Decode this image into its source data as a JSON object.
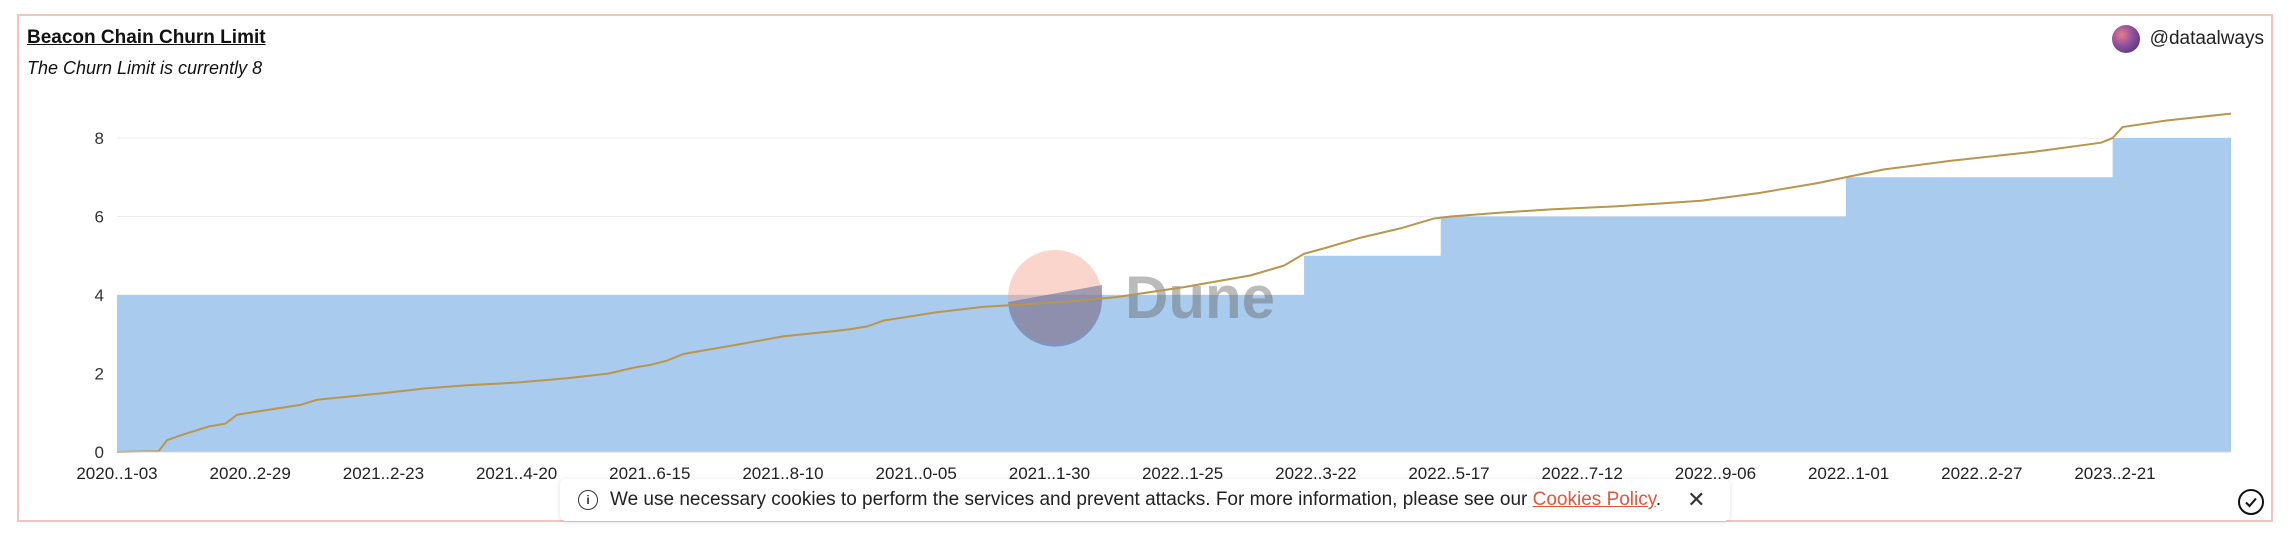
{
  "header": {
    "title": "Beacon Chain Churn Limit",
    "subtitle": "The Churn Limit is currently 8",
    "author": "@dataalways"
  },
  "watermark": {
    "text": "Dune"
  },
  "cookie_banner": {
    "text": "We use necessary cookies to perform the services and prevent attacks. For more information, please see our",
    "link_text": "Cookies Policy",
    "suffix": ".",
    "info_icon": "info-icon",
    "close_icon": "close-icon"
  },
  "accept_icon": "check-circle-icon",
  "colors": {
    "area": "#a9cbee",
    "line": "#b8964c",
    "grid": "#ececec",
    "frame": "#f2c6be",
    "link": "#e2553f"
  },
  "chart_data": {
    "type": "area",
    "x_range": [
      0,
      1268
    ],
    "ylim": [
      0,
      8
    ],
    "y_ticks": [
      0,
      2,
      4,
      6,
      8
    ],
    "x_tick_labels": [
      "2020..1-03",
      "2020..2-29",
      "2021..2-23",
      "2021..4-20",
      "2021..6-15",
      "2021..8-10",
      "2021..0-05",
      "2021..1-30",
      "2022..1-25",
      "2022..3-22",
      "2022..5-17",
      "2022..7-12",
      "2022..9-06",
      "2022..1-01",
      "2022..2-27",
      "2023..2-21"
    ],
    "grid": true,
    "legend": "none",
    "series": [
      {
        "type": "area",
        "step": true,
        "points": [
          [
            0,
            4
          ],
          [
            712,
            4
          ],
          [
            712,
            5
          ],
          [
            794,
            5
          ],
          [
            794,
            6
          ],
          [
            1037,
            6
          ],
          [
            1037,
            7
          ],
          [
            1197,
            7
          ],
          [
            1197,
            8
          ],
          [
            1268,
            8
          ]
        ]
      },
      {
        "type": "line",
        "points": [
          [
            0,
            0
          ],
          [
            25,
            0.02
          ],
          [
            30,
            0.3
          ],
          [
            40,
            0.45
          ],
          [
            55,
            0.65
          ],
          [
            65,
            0.72
          ],
          [
            72,
            0.95
          ],
          [
            90,
            1.07
          ],
          [
            110,
            1.2
          ],
          [
            120,
            1.33
          ],
          [
            160,
            1.5
          ],
          [
            185,
            1.62
          ],
          [
            210,
            1.7
          ],
          [
            240,
            1.77
          ],
          [
            270,
            1.88
          ],
          [
            295,
            2.0
          ],
          [
            310,
            2.15
          ],
          [
            320,
            2.22
          ],
          [
            330,
            2.33
          ],
          [
            340,
            2.5
          ],
          [
            370,
            2.72
          ],
          [
            400,
            2.95
          ],
          [
            430,
            3.08
          ],
          [
            440,
            3.13
          ],
          [
            450,
            3.2
          ],
          [
            460,
            3.35
          ],
          [
            490,
            3.55
          ],
          [
            520,
            3.7
          ],
          [
            540,
            3.75
          ],
          [
            570,
            3.83
          ],
          [
            600,
            3.95
          ],
          [
            640,
            4.2
          ],
          [
            680,
            4.5
          ],
          [
            700,
            4.75
          ],
          [
            712,
            5.05
          ],
          [
            725,
            5.2
          ],
          [
            745,
            5.45
          ],
          [
            770,
            5.7
          ],
          [
            790,
            5.95
          ],
          [
            800,
            6.0
          ],
          [
            830,
            6.1
          ],
          [
            860,
            6.18
          ],
          [
            900,
            6.26
          ],
          [
            950,
            6.4
          ],
          [
            985,
            6.6
          ],
          [
            1020,
            6.85
          ],
          [
            1037,
            7.0
          ],
          [
            1060,
            7.2
          ],
          [
            1100,
            7.42
          ],
          [
            1150,
            7.65
          ],
          [
            1190,
            7.88
          ],
          [
            1197,
            8.0
          ],
          [
            1203,
            8.28
          ],
          [
            1230,
            8.45
          ],
          [
            1268,
            8.62
          ]
        ]
      }
    ]
  }
}
